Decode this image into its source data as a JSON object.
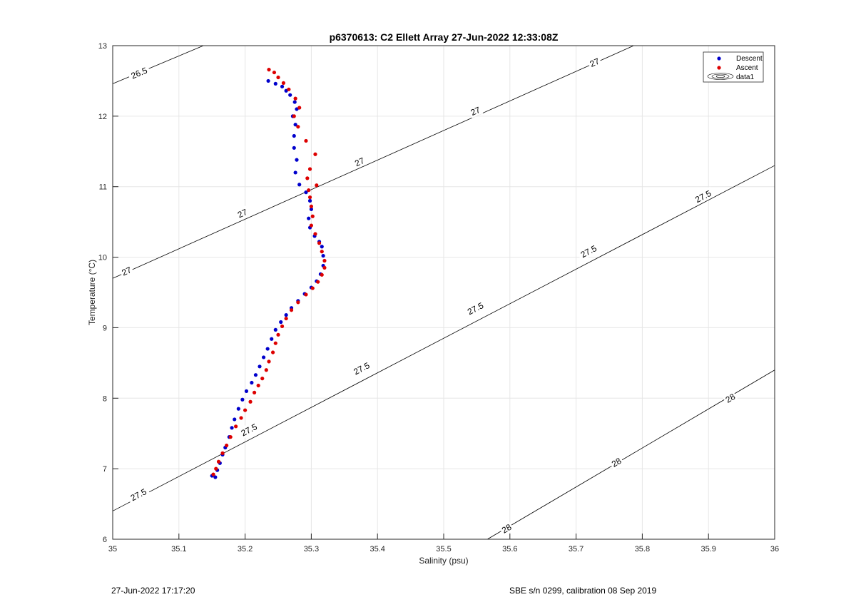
{
  "chart_data": {
    "type": "scatter",
    "title": "p6370613: C2 Ellett Array 27-Jun-2022 12:33:08Z",
    "xlabel": "Salinity (psu)",
    "ylabel": "Temperature (°C)",
    "xlim": [
      35,
      36
    ],
    "ylim": [
      6,
      13
    ],
    "xticks": [
      "35",
      "35.1",
      "35.2",
      "35.3",
      "35.4",
      "35.5",
      "35.6",
      "35.7",
      "35.8",
      "35.9",
      "36"
    ],
    "yticks": [
      "6",
      "7",
      "8",
      "9",
      "10",
      "11",
      "12",
      "13"
    ],
    "grid": true,
    "legend": {
      "placement": "top-right",
      "entries": [
        "Descent",
        "Ascent",
        "data1"
      ]
    },
    "series": [
      {
        "name": "Descent",
        "color": "#0000cc",
        "points": [
          [
            35.15,
            6.9
          ],
          [
            35.155,
            6.88
          ],
          [
            35.158,
            6.98
          ],
          [
            35.162,
            7.08
          ],
          [
            35.166,
            7.2
          ],
          [
            35.17,
            7.3
          ],
          [
            35.176,
            7.45
          ],
          [
            35.18,
            7.58
          ],
          [
            35.184,
            7.7
          ],
          [
            35.19,
            7.85
          ],
          [
            35.196,
            7.98
          ],
          [
            35.202,
            8.1
          ],
          [
            35.21,
            8.22
          ],
          [
            35.216,
            8.33
          ],
          [
            35.222,
            8.45
          ],
          [
            35.228,
            8.58
          ],
          [
            35.234,
            8.7
          ],
          [
            35.24,
            8.84
          ],
          [
            35.246,
            8.97
          ],
          [
            35.254,
            9.08
          ],
          [
            35.262,
            9.18
          ],
          [
            35.27,
            9.28
          ],
          [
            35.28,
            9.38
          ],
          [
            35.29,
            9.48
          ],
          [
            35.3,
            9.57
          ],
          [
            35.308,
            9.66
          ],
          [
            35.314,
            9.76
          ],
          [
            35.318,
            9.88
          ],
          [
            35.318,
            10.02
          ],
          [
            35.316,
            10.15
          ],
          [
            35.312,
            10.22
          ],
          [
            35.305,
            10.3
          ],
          [
            35.298,
            10.42
          ],
          [
            35.296,
            10.55
          ],
          [
            35.3,
            10.68
          ],
          [
            35.298,
            10.8
          ],
          [
            35.292,
            10.92
          ],
          [
            35.282,
            11.03
          ],
          [
            35.276,
            11.2
          ],
          [
            35.278,
            11.38
          ],
          [
            35.274,
            11.55
          ],
          [
            35.274,
            11.72
          ],
          [
            35.276,
            11.88
          ],
          [
            35.272,
            12.0
          ],
          [
            35.278,
            12.1
          ],
          [
            35.275,
            12.2
          ],
          [
            35.268,
            12.3
          ],
          [
            35.262,
            12.36
          ],
          [
            35.256,
            12.42
          ],
          [
            35.246,
            12.46
          ],
          [
            35.235,
            12.5
          ]
        ]
      },
      {
        "name": "Ascent",
        "color": "#dd0000",
        "points": [
          [
            35.152,
            6.92
          ],
          [
            35.156,
            7.0
          ],
          [
            35.16,
            7.1
          ],
          [
            35.166,
            7.22
          ],
          [
            35.172,
            7.33
          ],
          [
            35.178,
            7.45
          ],
          [
            35.186,
            7.6
          ],
          [
            35.194,
            7.72
          ],
          [
            35.2,
            7.83
          ],
          [
            35.208,
            7.95
          ],
          [
            35.214,
            8.08
          ],
          [
            35.22,
            8.18
          ],
          [
            35.226,
            8.28
          ],
          [
            35.232,
            8.4
          ],
          [
            35.236,
            8.52
          ],
          [
            35.242,
            8.65
          ],
          [
            35.246,
            8.78
          ],
          [
            35.25,
            8.9
          ],
          [
            35.256,
            9.02
          ],
          [
            35.262,
            9.13
          ],
          [
            35.27,
            9.25
          ],
          [
            35.28,
            9.36
          ],
          [
            35.292,
            9.47
          ],
          [
            35.302,
            9.56
          ],
          [
            35.31,
            9.65
          ],
          [
            35.316,
            9.75
          ],
          [
            35.32,
            9.85
          ],
          [
            35.32,
            9.95
          ],
          [
            35.316,
            10.08
          ],
          [
            35.312,
            10.2
          ],
          [
            35.306,
            10.33
          ],
          [
            35.3,
            10.45
          ],
          [
            35.302,
            10.58
          ],
          [
            35.3,
            10.72
          ],
          [
            35.298,
            10.85
          ],
          [
            35.296,
            10.95
          ],
          [
            35.308,
            11.02
          ],
          [
            35.294,
            11.12
          ],
          [
            35.298,
            11.25
          ],
          [
            35.306,
            11.46
          ],
          [
            35.292,
            11.65
          ],
          [
            35.28,
            11.85
          ],
          [
            35.274,
            12.0
          ],
          [
            35.282,
            12.12
          ],
          [
            35.276,
            12.25
          ],
          [
            35.266,
            12.38
          ],
          [
            35.258,
            12.47
          ],
          [
            35.25,
            12.55
          ],
          [
            35.244,
            12.62
          ],
          [
            35.236,
            12.66
          ]
        ]
      }
    ],
    "contours": [
      {
        "level": "26.5",
        "lines": [
          {
            "from": [
              35.0,
              12.46
            ],
            "to": [
              35.137,
              13.0
            ]
          }
        ],
        "labels": [
          {
            "text": "26.5",
            "at": [
              35.04,
              12.61
            ]
          }
        ]
      },
      {
        "level": "27",
        "lines": [
          {
            "from": [
              35.0,
              9.7
            ],
            "to": [
              35.787,
              13.0
            ]
          }
        ],
        "labels": [
          {
            "text": "27",
            "at": [
              35.021,
              9.8
            ]
          },
          {
            "text": "27",
            "at": [
              35.196,
              10.62
            ]
          },
          {
            "text": "27",
            "at": [
              35.373,
              11.35
            ]
          },
          {
            "text": "27",
            "at": [
              35.548,
              12.07
            ]
          },
          {
            "text": "27",
            "at": [
              35.728,
              12.76
            ]
          }
        ]
      },
      {
        "level": "27.5",
        "lines": [
          {
            "from": [
              35.0,
              6.4
            ],
            "to": [
              36.0,
              11.3
            ]
          }
        ],
        "labels": [
          {
            "text": "27.5",
            "at": [
              35.039,
              6.63
            ]
          },
          {
            "text": "27.5",
            "at": [
              35.206,
              7.55
            ]
          },
          {
            "text": "27.5",
            "at": [
              35.376,
              8.42
            ]
          },
          {
            "text": "27.5",
            "at": [
              35.548,
              9.27
            ]
          },
          {
            "text": "27.5",
            "at": [
              35.719,
              10.08
            ]
          },
          {
            "text": "27.5",
            "at": [
              35.892,
              10.86
            ]
          }
        ]
      },
      {
        "level": "28",
        "lines": [
          {
            "from": [
              35.566,
              6.0
            ],
            "to": [
              36.0,
              8.4
            ]
          }
        ],
        "labels": [
          {
            "text": "28",
            "at": [
              35.595,
              6.15
            ]
          },
          {
            "text": "28",
            "at": [
              35.761,
              7.09
            ]
          },
          {
            "text": "28",
            "at": [
              35.933,
              8.0
            ]
          }
        ]
      }
    ]
  },
  "footer": {
    "timestamp": "27-Jun-2022 17:17:20",
    "instrument": "SBE s/n 0299, calibration 08 Sep 2019"
  }
}
